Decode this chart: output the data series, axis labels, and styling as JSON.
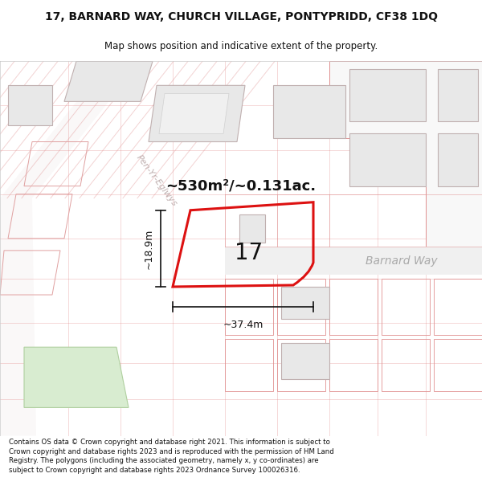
{
  "title_line1": "17, BARNARD WAY, CHURCH VILLAGE, PONTYPRIDD, CF38 1DQ",
  "title_line2": "Map shows position and indicative extent of the property.",
  "footer_text": "Contains OS data © Crown copyright and database right 2021. This information is subject to Crown copyright and database rights 2023 and is reproduced with the permission of HM Land Registry. The polygons (including the associated geometry, namely x, y co-ordinates) are subject to Crown copyright and database rights 2023 Ordnance Survey 100026316.",
  "map_bg": "#ffffff",
  "building_fill": "#e8e8e8",
  "building_stroke": "#c0b0b0",
  "grid_color": "#e08080",
  "grid_alpha": 0.5,
  "property_stroke": "#dd1111",
  "property_lw": 2.2,
  "road_line_color": "#e09090",
  "road_fill": "#f8f8f8",
  "green_fill": "#d8ecd0",
  "green_stroke": "#b0d0a0",
  "text_color": "#111111",
  "dim_color": "#111111",
  "road_label_color": "#aaaaaa",
  "road_name_color": "#c0a0a0",
  "label_17": "17",
  "area_text": "~530m²/~0.131ac.",
  "dim_width": "~37.4m",
  "dim_height": "~18.9m",
  "road_name1": "Barnard Way",
  "road_name2": "Pen-Yr-Eglwys"
}
